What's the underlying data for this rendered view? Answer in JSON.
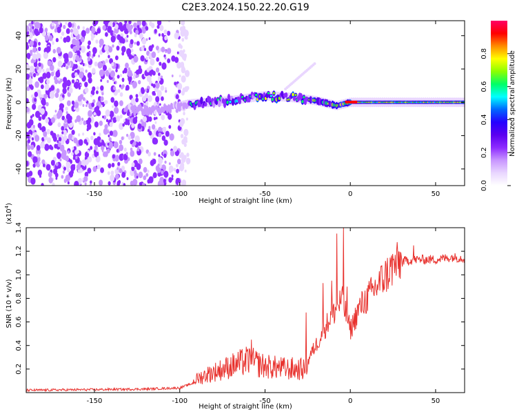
{
  "title": "C2E3.2024.150.22.20.G19",
  "colors": {
    "snr_line": "#e8322e",
    "background": "#ffffff",
    "colormap": [
      "#ffffff",
      "#e9d6ff",
      "#c896ff",
      "#8d2bff",
      "#5b00f0",
      "#2500ff",
      "#0066ff",
      "#00ffff",
      "#00ff66",
      "#8cff00",
      "#ffff00",
      "#ff8c00",
      "#ff0000",
      "#ff0066"
    ]
  },
  "chart_data": [
    {
      "type": "heatmap",
      "name": "spectrogram",
      "xlabel": "Height of straight line (km)",
      "ylabel": "Frequency (Hz)",
      "xlim": [
        -190,
        67
      ],
      "ylim": [
        -50,
        49
      ],
      "xticks": [
        -150,
        -100,
        -50,
        0,
        50
      ],
      "yticks": [
        -40,
        -20,
        0,
        20,
        40
      ],
      "grid": false,
      "colorbar": {
        "label": "Normalized spectral amplitude",
        "range": [
          0.0,
          1.0
        ],
        "ticks": [
          "0.0",
          "0.2",
          "0.4",
          "0.6",
          "0.8"
        ]
      },
      "ridge": {
        "description_points": [
          {
            "x": -130,
            "y": -4
          },
          {
            "x": -110,
            "y": -5
          },
          {
            "x": -95,
            "y": -1
          },
          {
            "x": -70,
            "y": 1
          },
          {
            "x": -50,
            "y": 4
          },
          {
            "x": -35,
            "y": 3
          },
          {
            "x": -20,
            "y": 1
          },
          {
            "x": -8,
            "y": -2
          },
          {
            "x": 0,
            "y": 0
          },
          {
            "x": 67,
            "y": 0
          }
        ],
        "side_branch": [
          {
            "x": -38,
            "y": 8
          },
          {
            "x": -20,
            "y": 24
          }
        ]
      }
    },
    {
      "type": "line",
      "name": "snr",
      "xlabel": "Height of straight line (km)",
      "ylabel": "SNR (10 * v/v)",
      "scale_label": "(x10⁴)",
      "scale_base": "(x10",
      "scale_exp": "4",
      "scale_close": ")",
      "xlim": [
        -190,
        67
      ],
      "ylim": [
        0,
        1.4
      ],
      "xticks": [
        -150,
        -100,
        -50,
        0,
        50
      ],
      "yticks": [
        "0.2",
        "0.4",
        "0.6",
        "0.8",
        "1.0",
        "1.2",
        "1.4"
      ],
      "grid": false,
      "envelope_points": [
        {
          "x": -190,
          "y": 0.02
        },
        {
          "x": -120,
          "y": 0.03
        },
        {
          "x": -100,
          "y": 0.04
        },
        {
          "x": -92,
          "y": 0.08
        },
        {
          "x": -85,
          "y": 0.12
        },
        {
          "x": -70,
          "y": 0.18
        },
        {
          "x": -60,
          "y": 0.22
        },
        {
          "x": -50,
          "y": 0.18
        },
        {
          "x": -35,
          "y": 0.16
        },
        {
          "x": -26,
          "y": 0.16
        },
        {
          "x": -24,
          "y": 0.3
        },
        {
          "x": -18,
          "y": 0.45
        },
        {
          "x": -12,
          "y": 0.62
        },
        {
          "x": -8,
          "y": 0.7
        },
        {
          "x": -5,
          "y": 0.78
        },
        {
          "x": 0,
          "y": 0.52
        },
        {
          "x": 5,
          "y": 0.7
        },
        {
          "x": 15,
          "y": 0.88
        },
        {
          "x": 25,
          "y": 1.05
        },
        {
          "x": 32,
          "y": 1.12
        },
        {
          "x": 40,
          "y": 1.13
        },
        {
          "x": 50,
          "y": 1.13
        },
        {
          "x": 60,
          "y": 1.15
        },
        {
          "x": 67,
          "y": 1.14
        }
      ],
      "spikes": [
        {
          "x": -58,
          "y": 0.45
        },
        {
          "x": -34,
          "y": 0.3
        },
        {
          "x": -26,
          "y": 0.68
        },
        {
          "x": -16,
          "y": 0.93
        },
        {
          "x": -11,
          "y": 0.95
        },
        {
          "x": -8,
          "y": 1.35
        },
        {
          "x": -4,
          "y": 1.4
        },
        {
          "x": -2,
          "y": 0.9
        },
        {
          "x": 37,
          "y": 1.25
        }
      ]
    }
  ]
}
